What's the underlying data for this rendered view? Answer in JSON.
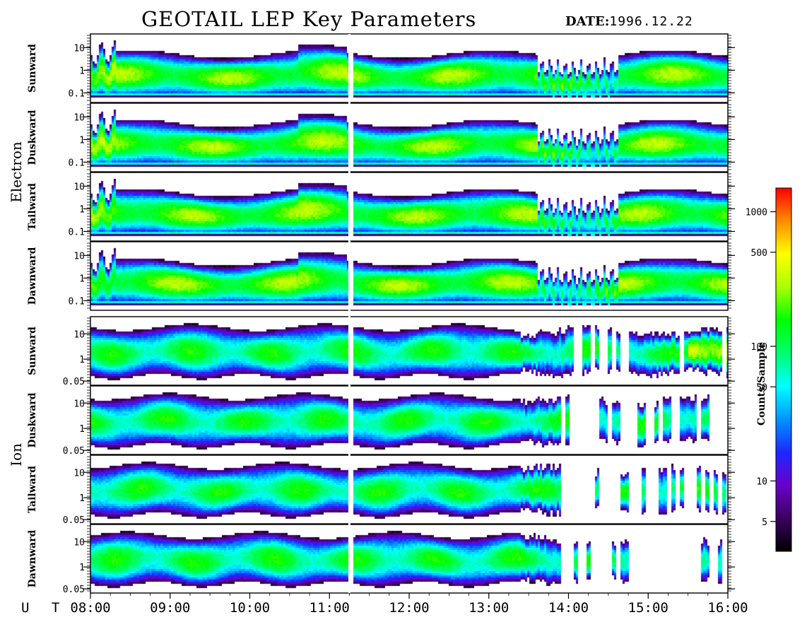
{
  "header": {
    "title": "GEOTAIL LEP Key Parameters",
    "date_label": "DATE:",
    "date_value": "1996.12.22"
  },
  "chart_data": {
    "type": "heatmap",
    "title": "GEOTAIL LEP Key Parameters",
    "x_axis": {
      "label": "U T",
      "range": [
        "08:00",
        "16:00"
      ],
      "ticks": [
        "08:00",
        "09:00",
        "10:00",
        "11:00",
        "12:00",
        "13:00",
        "14:00",
        "15:00",
        "16:00"
      ]
    },
    "data_gap_utc": "11:15",
    "groups": [
      {
        "name": "Electron",
        "panels": [
          "Sunward",
          "Duskward",
          "Tailward",
          "Dawnward"
        ],
        "y_scale": "log",
        "y_range": [
          0.05,
          20
        ],
        "y_ticks": [
          "10",
          "1",
          "0.1"
        ]
      },
      {
        "name": "Ion",
        "panels": [
          "Sunward",
          "Duskward",
          "Tailward",
          "Dawnward"
        ],
        "y_scale": "log",
        "y_range": [
          0.05,
          30
        ],
        "y_ticks": [
          "10",
          "1",
          "0.05"
        ]
      }
    ],
    "colorbar": {
      "label": "Counts/Sample",
      "scale": "log",
      "range": [
        3,
        1500
      ],
      "ticks": [
        "5",
        "10",
        "50",
        "100",
        "500",
        "1000"
      ],
      "colormap": [
        "#000000",
        "#3a0060",
        "#6a00c8",
        "#1c28ff",
        "#0096ff",
        "#00ffff",
        "#00ff6e",
        "#00ff00",
        "#aaff00",
        "#ffff00",
        "#ff8c00",
        "#ff0000"
      ]
    }
  }
}
